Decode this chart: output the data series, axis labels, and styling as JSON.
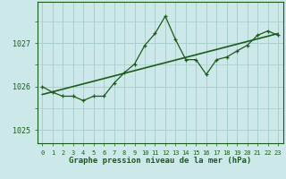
{
  "title": "Graphe pression niveau de la mer (hPa)",
  "background_color": "#cce8e8",
  "grid_color": "#aacece",
  "line_color": "#1a5c1a",
  "xlim": [
    -0.5,
    23.5
  ],
  "ylim": [
    1024.7,
    1027.95
  ],
  "yticks": [
    1025,
    1026,
    1027
  ],
  "xticks": [
    0,
    1,
    2,
    3,
    4,
    5,
    6,
    7,
    8,
    9,
    10,
    11,
    12,
    13,
    14,
    15,
    16,
    17,
    18,
    19,
    20,
    21,
    22,
    23
  ],
  "x_data": [
    0,
    1,
    2,
    3,
    4,
    5,
    6,
    7,
    8,
    9,
    10,
    11,
    12,
    13,
    14,
    15,
    16,
    17,
    18,
    19,
    20,
    21,
    22,
    23
  ],
  "y_data": [
    1026.0,
    1025.87,
    1025.78,
    1025.78,
    1025.68,
    1025.78,
    1025.78,
    1026.08,
    1026.32,
    1026.52,
    1026.95,
    1027.22,
    1027.62,
    1027.08,
    1026.62,
    1026.62,
    1026.28,
    1026.62,
    1026.68,
    1026.82,
    1026.95,
    1027.18,
    1027.28,
    1027.18
  ],
  "trend_x": [
    0,
    23
  ],
  "trend_y": [
    1025.82,
    1027.22
  ]
}
